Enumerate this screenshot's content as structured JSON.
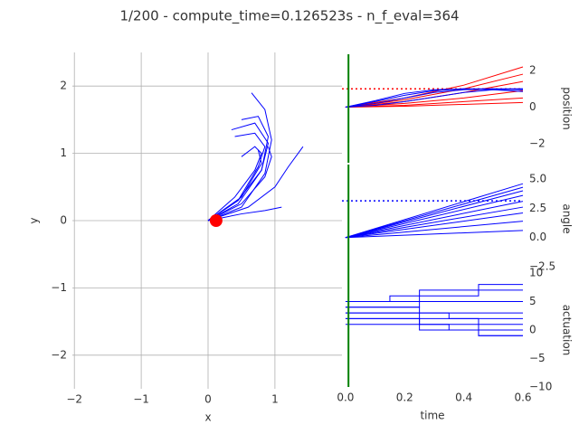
{
  "title": "1/200 - compute_time=0.126523s - n_f_eval=364",
  "chart_data": [
    {
      "type": "line",
      "xlabel": "x",
      "ylabel": "y",
      "grid": true,
      "xlim": [
        -2.03,
        2.03
      ],
      "ylim": [
        -2.5,
        2.5
      ],
      "xticks": [
        {
          "value": -2,
          "label": "−2"
        },
        {
          "value": -1,
          "label": "−1"
        },
        0,
        1
      ],
      "yticks": [
        {
          "value": -2,
          "label": "−2"
        },
        {
          "value": -1,
          "label": "−1"
        },
        0,
        1,
        2
      ],
      "series": [
        {
          "color": "#0000ff",
          "x": [
            0,
            0.5,
            0.85,
            0.95,
            0.85,
            0.65
          ],
          "values": [
            0,
            0.2,
            0.7,
            1.2,
            1.65,
            1.9
          ]
        },
        {
          "color": "#0000ff",
          "x": [
            0,
            0.45,
            0.8,
            0.9,
            0.75,
            0.5
          ],
          "values": [
            0,
            0.25,
            0.75,
            1.25,
            1.55,
            1.5
          ]
        },
        {
          "color": "#0000ff",
          "x": [
            0,
            0.45,
            0.75,
            0.85,
            0.7,
            0.4
          ],
          "values": [
            0,
            0.3,
            0.8,
            1.1,
            1.3,
            1.25
          ]
        },
        {
          "color": "#0000ff",
          "x": [
            0,
            0.4,
            0.7,
            0.8,
            0.7,
            0.5
          ],
          "values": [
            0,
            0.35,
            0.75,
            1.0,
            1.1,
            0.95
          ]
        },
        {
          "color": "#0000ff",
          "x": [
            0,
            0.5,
            0.85,
            0.95,
            0.9
          ],
          "values": [
            0,
            0.25,
            0.65,
            0.95,
            1.1
          ]
        },
        {
          "color": "#0000ff",
          "x": [
            0,
            0.6,
            1.0,
            1.2,
            1.42
          ],
          "values": [
            0,
            0.2,
            0.5,
            0.8,
            1.1
          ]
        },
        {
          "color": "#0000ff",
          "x": [
            0,
            0.5,
            0.8,
            0.75
          ],
          "values": [
            0,
            0.35,
            0.85,
            1.05
          ]
        },
        {
          "color": "#0000ff",
          "x": [
            0,
            0.5,
            0.85,
            1.1
          ],
          "values": [
            0,
            0.1,
            0.15,
            0.2
          ]
        },
        {
          "color": "#0000ff",
          "x": [
            0,
            0.45,
            0.8,
            0.9,
            0.7,
            0.35
          ],
          "values": [
            0,
            0.3,
            0.75,
            1.15,
            1.45,
            1.35
          ]
        }
      ],
      "points": {
        "color": "#ff0000",
        "x": [
          0.12
        ],
        "values": [
          0
        ]
      }
    },
    {
      "type": "line",
      "ylabel": "position",
      "xlim": [
        -0.012,
        0.6
      ],
      "ylim": [
        -3.04,
        2.89
      ],
      "yticks": [
        {
          "value": -2,
          "label": "−2"
        },
        0,
        2
      ],
      "vline": {
        "value": 0.01,
        "color": "#008000"
      },
      "hline": {
        "value": 1,
        "color": "#ff0000"
      },
      "series": [
        {
          "color": "#ff0000",
          "x": [
            0,
            0.2,
            0.4,
            0.6
          ],
          "values": [
            0,
            0.5,
            1.2,
            2.2
          ]
        },
        {
          "color": "#ff0000",
          "x": [
            0,
            0.2,
            0.4,
            0.6
          ],
          "values": [
            0,
            0.4,
            1.0,
            1.8
          ]
        },
        {
          "color": "#ff0000",
          "x": [
            0,
            0.2,
            0.4,
            0.6
          ],
          "values": [
            0,
            0.3,
            0.8,
            1.4
          ]
        },
        {
          "color": "#ff0000",
          "x": [
            0,
            0.2,
            0.4,
            0.6
          ],
          "values": [
            0,
            0.2,
            0.5,
            0.9
          ]
        },
        {
          "color": "#ff0000",
          "x": [
            0,
            0.2,
            0.4,
            0.6
          ],
          "values": [
            0,
            0.1,
            0.3,
            0.5
          ]
        },
        {
          "color": "#ff0000",
          "x": [
            0,
            0.2,
            0.4,
            0.6
          ],
          "values": [
            0,
            0.05,
            0.15,
            0.25
          ]
        },
        {
          "color": "#0000ff",
          "x": [
            0,
            0.1,
            0.2,
            0.3,
            0.4,
            0.5,
            0.6
          ],
          "values": [
            0,
            0.35,
            0.75,
            0.95,
            1.0,
            0.95,
            0.85
          ]
        },
        {
          "color": "#0000ff",
          "x": [
            0,
            0.1,
            0.2,
            0.3,
            0.4,
            0.5,
            0.6
          ],
          "values": [
            0,
            0.3,
            0.65,
            0.9,
            1.0,
            1.0,
            0.95
          ]
        },
        {
          "color": "#0000ff",
          "x": [
            0,
            0.1,
            0.2,
            0.3,
            0.4,
            0.5,
            0.6
          ],
          "values": [
            0,
            0.2,
            0.5,
            0.8,
            0.95,
            1.0,
            1.0
          ]
        },
        {
          "color": "#0000ff",
          "x": [
            0,
            0.1,
            0.2,
            0.3,
            0.4,
            0.5,
            0.6
          ],
          "values": [
            0,
            0.1,
            0.3,
            0.55,
            0.8,
            0.95,
            1.0
          ]
        }
      ]
    },
    {
      "type": "line",
      "ylabel": "angle",
      "xlim": [
        -0.012,
        0.6
      ],
      "ylim": [
        -3.04,
        6.24
      ],
      "yticks": [
        {
          "value": -2.5,
          "label": "−2.5"
        },
        {
          "value": 0,
          "label": "0.0"
        },
        {
          "value": 2.5,
          "label": "2.5"
        },
        {
          "value": 5,
          "label": "5.0"
        }
      ],
      "vline": {
        "value": 0.01,
        "color": "#008000"
      },
      "hline": {
        "value": 3.14,
        "color": "#0000ff"
      },
      "series": [
        {
          "color": "#0000ff",
          "x": [
            0,
            0.6
          ],
          "values": [
            0,
            4.6
          ]
        },
        {
          "color": "#0000ff",
          "x": [
            0,
            0.6
          ],
          "values": [
            0,
            4.3
          ]
        },
        {
          "color": "#0000ff",
          "x": [
            0,
            0.6
          ],
          "values": [
            0,
            4.0
          ]
        },
        {
          "color": "#0000ff",
          "x": [
            0,
            0.6
          ],
          "values": [
            0,
            3.6
          ]
        },
        {
          "color": "#0000ff",
          "x": [
            0,
            0.6
          ],
          "values": [
            0,
            3.1
          ]
        },
        {
          "color": "#0000ff",
          "x": [
            0,
            0.6
          ],
          "values": [
            0,
            2.6
          ]
        },
        {
          "color": "#0000ff",
          "x": [
            0,
            0.6
          ],
          "values": [
            0,
            2.1
          ]
        },
        {
          "color": "#0000ff",
          "x": [
            0,
            0.6
          ],
          "values": [
            0,
            1.4
          ]
        },
        {
          "color": "#0000ff",
          "x": [
            0,
            0.6
          ],
          "values": [
            0,
            0.6
          ]
        }
      ]
    },
    {
      "type": "step",
      "xlabel": "time",
      "ylabel": "actuation",
      "xlim": [
        -0.012,
        0.6
      ],
      "ylim": [
        -10,
        10
      ],
      "xticks": [
        {
          "value": 0,
          "label": "0.0"
        },
        {
          "value": 0.2,
          "label": "0.2"
        },
        {
          "value": 0.4,
          "label": "0.4"
        },
        {
          "value": 0.6,
          "label": "0.6"
        }
      ],
      "yticks": [
        {
          "value": -10,
          "label": "−10"
        },
        {
          "value": -5,
          "label": "−5"
        },
        0,
        5,
        10
      ],
      "vline": {
        "value": 0.01,
        "color": "#008000"
      },
      "series": [
        {
          "color": "#0000ff",
          "x": [
            0,
            0.15,
            0.25,
            0.35,
            0.45,
            0.6
          ],
          "values": [
            5,
            6,
            7,
            7,
            8,
            8
          ]
        },
        {
          "color": "#0000ff",
          "x": [
            0,
            0.15,
            0.25,
            0.35,
            0.45,
            0.6
          ],
          "values": [
            5,
            5,
            6,
            6,
            7,
            7
          ]
        },
        {
          "color": "#0000ff",
          "x": [
            0,
            0.15,
            0.25,
            0.35,
            0.45,
            0.6
          ],
          "values": [
            4,
            4,
            5,
            5,
            5,
            5
          ]
        },
        {
          "color": "#0000ff",
          "x": [
            0,
            0.15,
            0.25,
            0.35,
            0.45,
            0.6
          ],
          "values": [
            4,
            4,
            3,
            3,
            3,
            3
          ]
        },
        {
          "color": "#0000ff",
          "x": [
            0,
            0.15,
            0.25,
            0.35,
            0.45,
            0.6
          ],
          "values": [
            3,
            3,
            3,
            2,
            2,
            2
          ]
        },
        {
          "color": "#0000ff",
          "x": [
            0,
            0.15,
            0.25,
            0.35,
            0.45,
            0.6
          ],
          "values": [
            3,
            3,
            2,
            2,
            1,
            1
          ]
        },
        {
          "color": "#0000ff",
          "x": [
            0,
            0.15,
            0.25,
            0.35,
            0.45,
            0.6
          ],
          "values": [
            2,
            2,
            1,
            1,
            0,
            0
          ]
        },
        {
          "color": "#0000ff",
          "x": [
            0,
            0.15,
            0.25,
            0.35,
            0.45,
            0.6
          ],
          "values": [
            2,
            2,
            1,
            0,
            -1,
            -1
          ]
        },
        {
          "color": "#0000ff",
          "x": [
            0,
            0.15,
            0.25,
            0.35,
            0.45,
            0.6
          ],
          "values": [
            1,
            1,
            0,
            0,
            -1,
            -1
          ]
        }
      ]
    }
  ]
}
